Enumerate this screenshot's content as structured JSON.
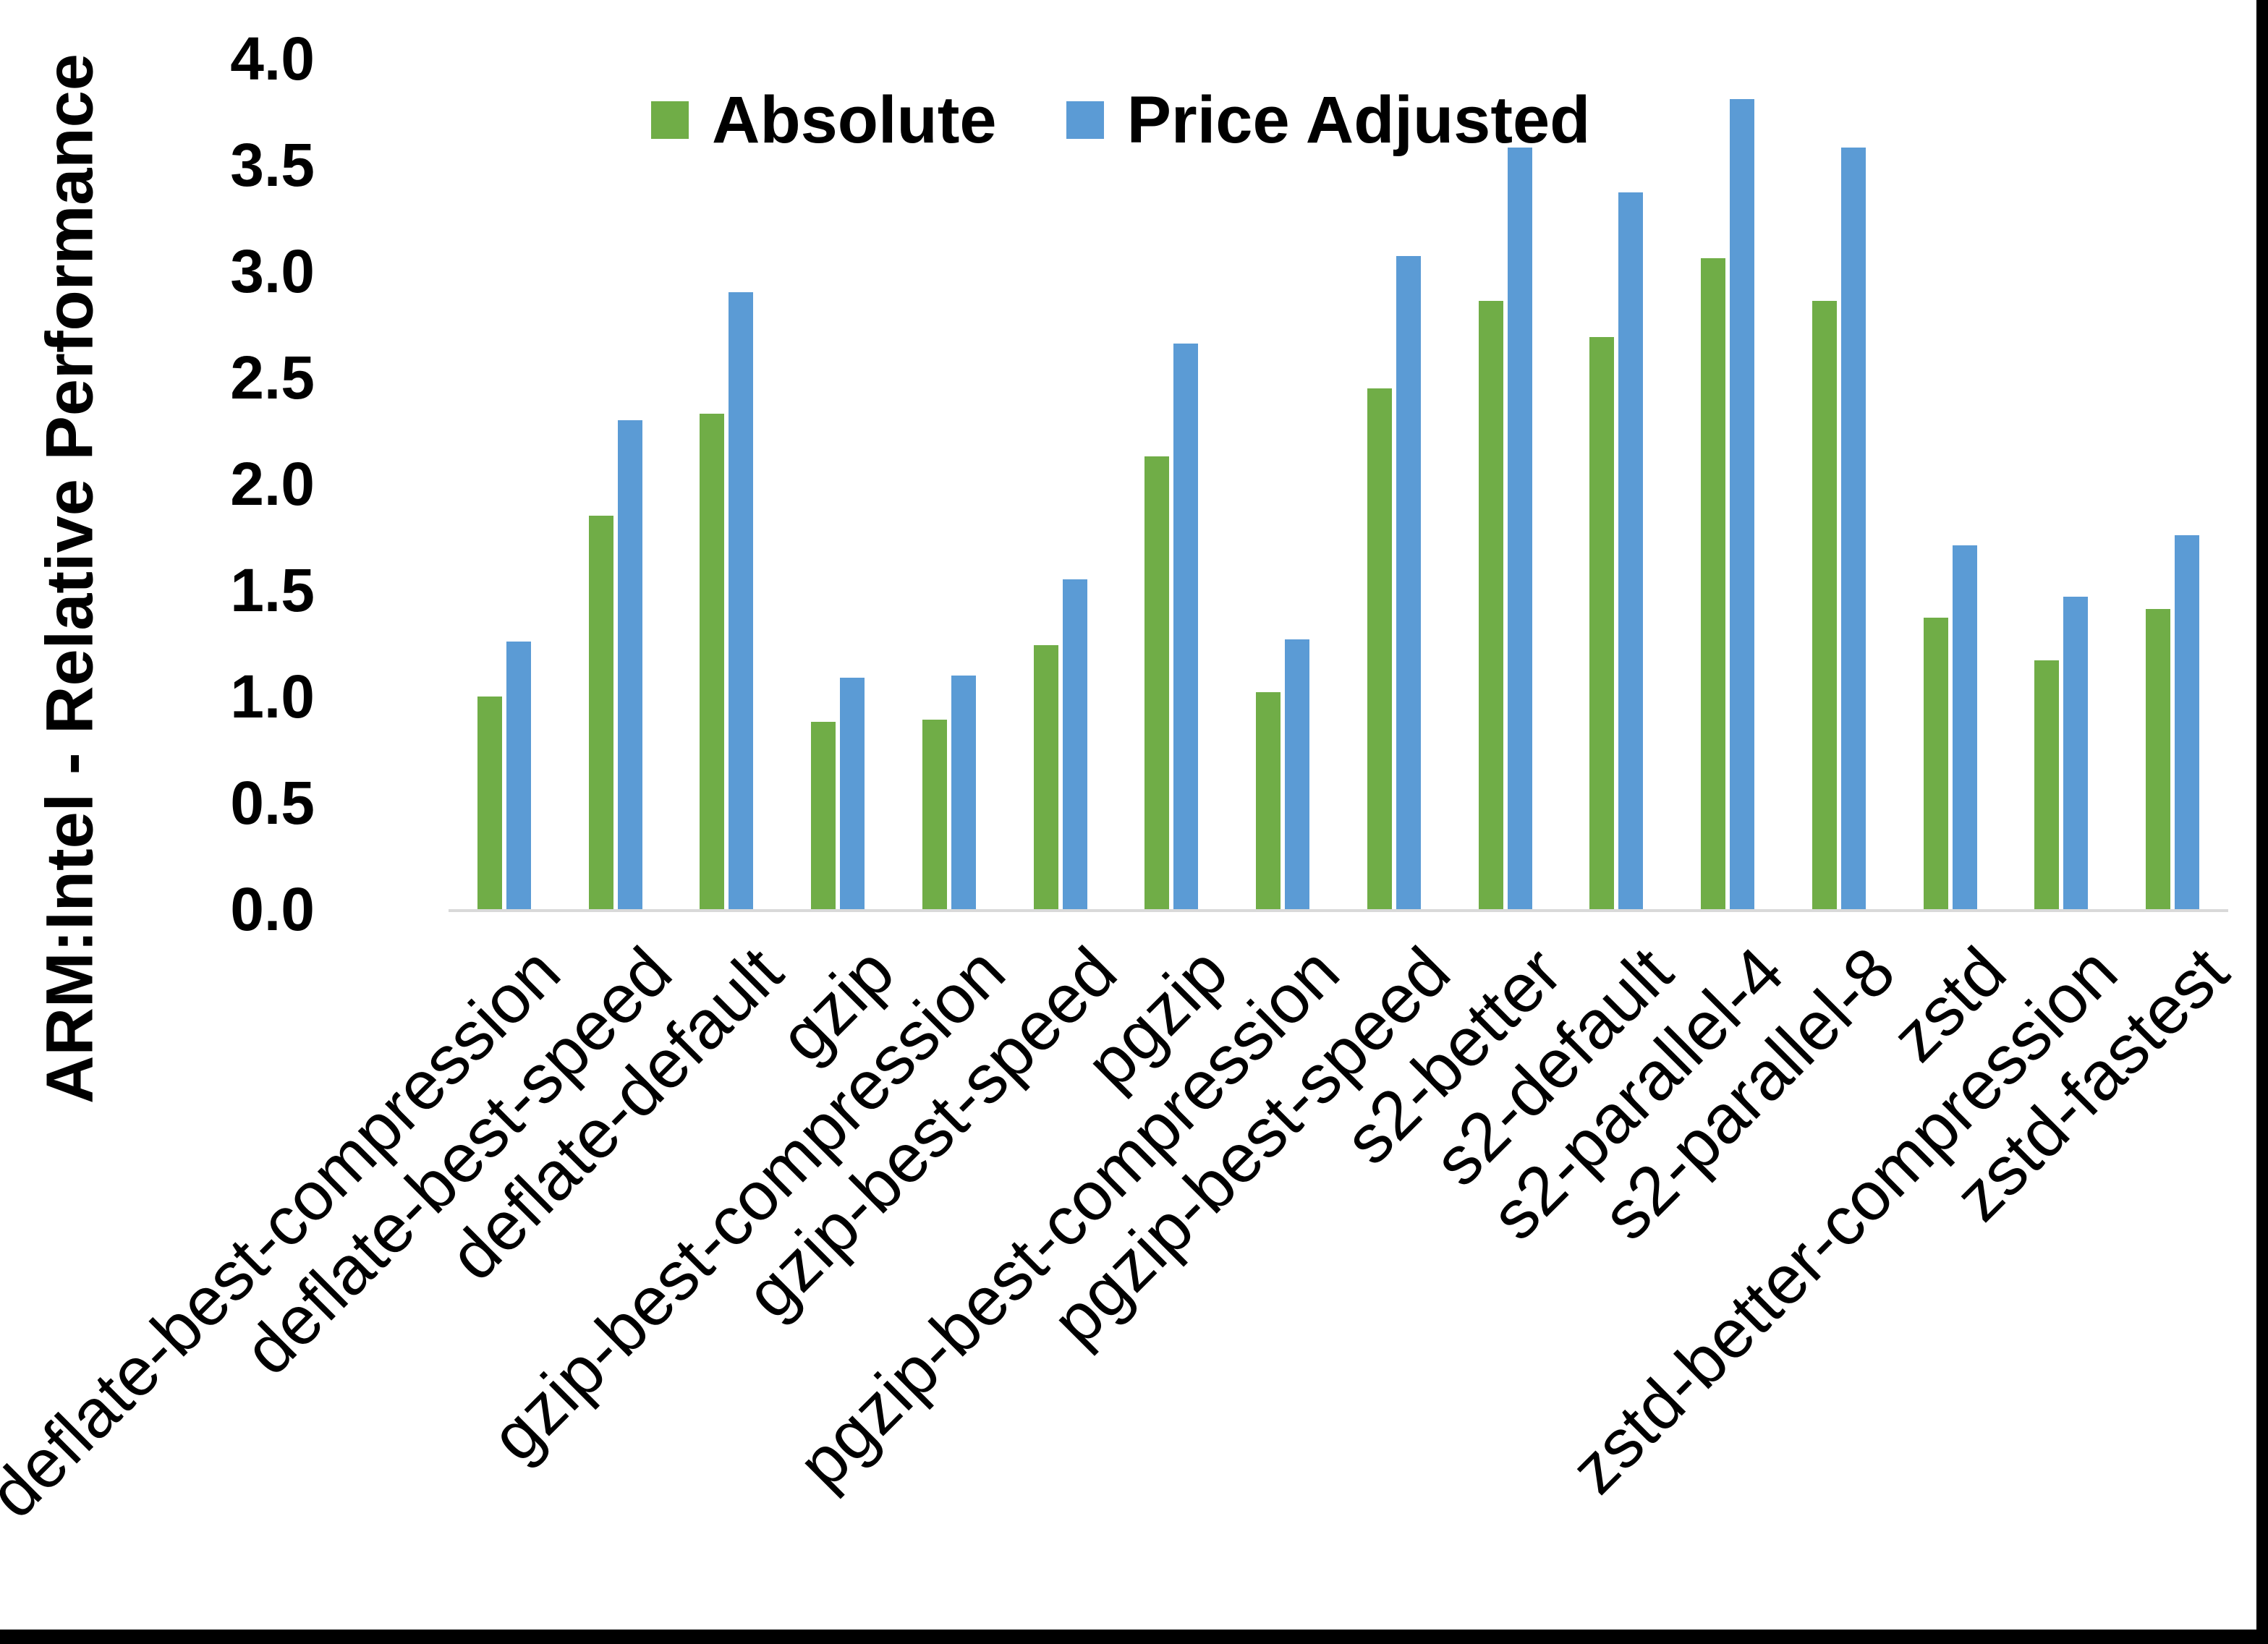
{
  "chart_data": {
    "type": "bar",
    "title": "",
    "xlabel": "",
    "ylabel": "ARM:Intel - Relative Performance",
    "ylim": [
      0.0,
      4.0
    ],
    "ytick_step": 0.5,
    "yticks": [
      "4.0",
      "3.5",
      "3.0",
      "2.5",
      "2.0",
      "1.5",
      "1.0",
      "0.5",
      "0.0"
    ],
    "grid": false,
    "legend_position": "top-center-inside",
    "categories": [
      "deflate-best-compression",
      "deflate-best-speed",
      "deflate-default",
      "gzip",
      "gzip-best-compression",
      "gzip-best-speed",
      "pgzip",
      "pgzip-best-compression",
      "pgzip-best-speed",
      "s2-better",
      "s2-default",
      "s2-parallel-4",
      "s2-parallel-8",
      "zstd",
      "zstd-better-compression",
      "zstd-fastest"
    ],
    "series": [
      {
        "name": "Absolute",
        "color": "#70AD47",
        "values": [
          1.0,
          1.85,
          2.33,
          0.88,
          0.89,
          1.24,
          2.13,
          1.02,
          2.45,
          2.86,
          2.69,
          3.06,
          2.86,
          1.37,
          1.17,
          1.41
        ]
      },
      {
        "name": "Price Adjusted",
        "color": "#5B9BD5",
        "values": [
          1.26,
          2.3,
          2.9,
          1.09,
          1.1,
          1.55,
          2.66,
          1.27,
          3.07,
          3.58,
          3.37,
          3.81,
          3.58,
          1.71,
          1.47,
          1.76
        ]
      }
    ]
  },
  "colors": {
    "axis_line": "#D9D9D9",
    "text": "#000000",
    "background": "#FFFFFF",
    "border": "#000000"
  }
}
